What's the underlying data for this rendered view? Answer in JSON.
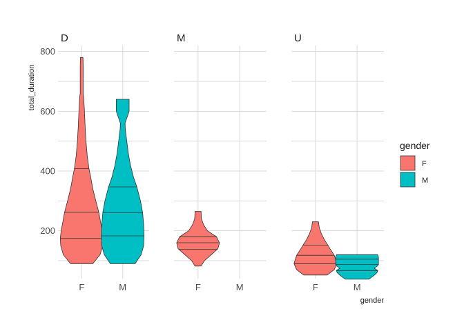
{
  "chart_data": {
    "type": "violin",
    "facet_by": "group",
    "panels": [
      "D",
      "M",
      "U"
    ],
    "categories": [
      "F",
      "M"
    ],
    "xlabel": "gender",
    "ylabel": "total_duration",
    "y_ticks": [
      200,
      400,
      600,
      800
    ],
    "ylim": [
      40,
      820
    ],
    "grid": true,
    "legend": {
      "title": "gender",
      "placement": "right",
      "entries": [
        {
          "label": "F",
          "color": "#F8766D"
        },
        {
          "label": "M",
          "color": "#00BFC4"
        }
      ]
    },
    "violins": [
      {
        "panel": "D",
        "category": "F",
        "color": "#F8766D",
        "min": 90,
        "max": 780,
        "quantiles": [
          175,
          262,
          408
        ],
        "profile": [
          [
            90,
            0.52
          ],
          [
            120,
            0.86
          ],
          [
            150,
            0.98
          ],
          [
            175,
            1.0
          ],
          [
            200,
            0.96
          ],
          [
            230,
            0.88
          ],
          [
            262,
            0.8
          ],
          [
            300,
            0.66
          ],
          [
            340,
            0.52
          ],
          [
            380,
            0.42
          ],
          [
            408,
            0.34
          ],
          [
            450,
            0.26
          ],
          [
            500,
            0.2
          ],
          [
            550,
            0.16
          ],
          [
            600,
            0.13
          ],
          [
            650,
            0.09
          ],
          [
            660,
            0.07
          ],
          [
            700,
            0.07
          ],
          [
            750,
            0.07
          ],
          [
            780,
            0.06
          ]
        ]
      },
      {
        "panel": "D",
        "category": "M",
        "color": "#00BFC4",
        "min": 90,
        "max": 640,
        "quantiles": [
          183,
          261,
          347
        ],
        "profile": [
          [
            90,
            0.58
          ],
          [
            120,
            0.86
          ],
          [
            150,
            0.98
          ],
          [
            183,
            1.0
          ],
          [
            220,
            0.98
          ],
          [
            261,
            0.93
          ],
          [
            300,
            0.83
          ],
          [
            347,
            0.66
          ],
          [
            380,
            0.5
          ],
          [
            420,
            0.36
          ],
          [
            460,
            0.26
          ],
          [
            500,
            0.19
          ],
          [
            540,
            0.12
          ],
          [
            560,
            0.11
          ],
          [
            600,
            0.3
          ],
          [
            640,
            0.3
          ]
        ]
      },
      {
        "panel": "M",
        "category": "F",
        "color": "#F8766D",
        "min": 82,
        "max": 265,
        "quantiles": [
          138,
          160,
          180
        ],
        "profile": [
          [
            82,
            0.14
          ],
          [
            100,
            0.3
          ],
          [
            120,
            0.62
          ],
          [
            140,
            0.93
          ],
          [
            160,
            1.0
          ],
          [
            180,
            0.86
          ],
          [
            200,
            0.44
          ],
          [
            220,
            0.26
          ],
          [
            240,
            0.16
          ],
          [
            250,
            0.15
          ],
          [
            265,
            0.14
          ]
        ]
      },
      {
        "panel": "U",
        "category": "F",
        "color": "#F8766D",
        "min": 52,
        "max": 230,
        "quantiles": [
          90,
          118,
          152
        ],
        "profile": [
          [
            52,
            0.55
          ],
          [
            70,
            0.88
          ],
          [
            90,
            1.0
          ],
          [
            118,
            0.88
          ],
          [
            140,
            0.68
          ],
          [
            152,
            0.58
          ],
          [
            170,
            0.42
          ],
          [
            190,
            0.28
          ],
          [
            210,
            0.18
          ],
          [
            230,
            0.14
          ]
        ]
      },
      {
        "panel": "U",
        "category": "M",
        "color": "#00BFC4",
        "min": 38,
        "max": 120,
        "quantiles": [
          67,
          87,
          105
        ],
        "profile": [
          [
            38,
            0.55
          ],
          [
            50,
            0.78
          ],
          [
            60,
            0.93
          ],
          [
            67,
            0.97
          ],
          [
            75,
            0.8
          ],
          [
            82,
            0.95
          ],
          [
            87,
            1.0
          ],
          [
            95,
            1.0
          ],
          [
            105,
            1.0
          ],
          [
            112,
            1.0
          ],
          [
            120,
            0.96
          ]
        ]
      }
    ]
  }
}
